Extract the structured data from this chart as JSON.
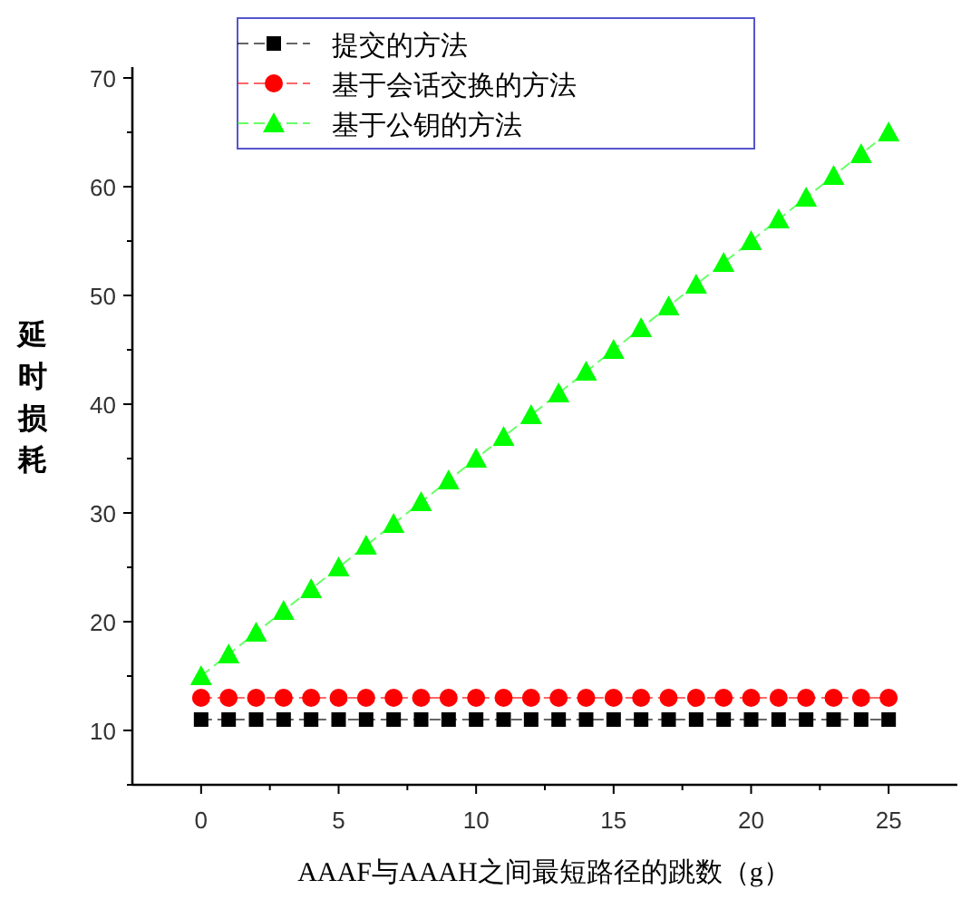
{
  "chart_data": {
    "type": "line",
    "xlabel": "AAAF与AAAH之间最短路径的跳数（g）",
    "ylabel": "延时损耗",
    "x": [
      0,
      1,
      2,
      3,
      4,
      5,
      6,
      7,
      8,
      9,
      10,
      11,
      12,
      13,
      14,
      15,
      16,
      17,
      18,
      19,
      20,
      21,
      22,
      23,
      24,
      25
    ],
    "series": [
      {
        "name": "提交的方法",
        "color": "#000000",
        "marker": "square",
        "values": [
          11,
          11,
          11,
          11,
          11,
          11,
          11,
          11,
          11,
          11,
          11,
          11,
          11,
          11,
          11,
          11,
          11,
          11,
          11,
          11,
          11,
          11,
          11,
          11,
          11,
          11
        ]
      },
      {
        "name": "基于会话交换的方法",
        "color": "#ff0000",
        "marker": "circle",
        "values": [
          13,
          13,
          13,
          13,
          13,
          13,
          13,
          13,
          13,
          13,
          13,
          13,
          13,
          13,
          13,
          13,
          13,
          13,
          13,
          13,
          13,
          13,
          13,
          13,
          13,
          13
        ]
      },
      {
        "name": "基于公钥的方法",
        "color": "#00ff00",
        "marker": "triangle",
        "values": [
          15,
          17,
          19,
          21,
          23,
          25,
          27,
          29,
          31,
          33,
          35,
          37,
          39,
          41,
          43,
          45,
          47,
          49,
          51,
          53,
          55,
          57,
          59,
          61,
          63,
          65
        ]
      }
    ],
    "xlim": [
      -2.5,
      27.5
    ],
    "ylim": [
      5,
      71
    ],
    "xticks": [
      0,
      {
        "value": 2.5,
        "label": null
      },
      5,
      {
        "value": 7.5,
        "label": null
      },
      10,
      {
        "value": 12.5,
        "label": null
      },
      15,
      {
        "value": 17.5,
        "label": null
      },
      20,
      {
        "value": 22.5,
        "label": null
      },
      25
    ],
    "yticks": [
      {
        "value": 5,
        "label": null
      },
      10,
      {
        "value": 15,
        "label": null
      },
      20,
      {
        "value": 25,
        "label": null
      },
      30,
      {
        "value": 35,
        "label": null
      },
      40,
      {
        "value": 45,
        "label": null
      },
      50,
      {
        "value": 55,
        "label": null
      },
      60,
      {
        "value": 65,
        "label": null
      },
      70
    ],
    "line_style": "dashed",
    "legend": "top",
    "grid": false
  }
}
